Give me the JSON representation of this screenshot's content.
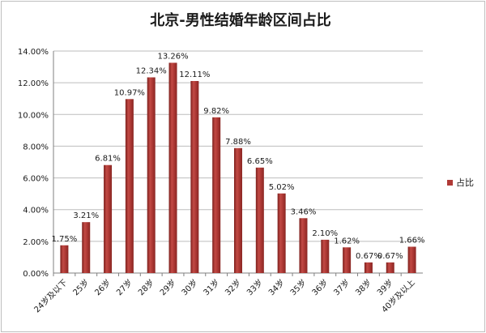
{
  "chart_data": {
    "type": "bar",
    "title": "北京-男性结婚年龄区间占比",
    "categories": [
      "24岁及以下",
      "25岁",
      "26岁",
      "27岁",
      "28岁",
      "29岁",
      "30岁",
      "31岁",
      "32岁",
      "33岁",
      "34岁",
      "35岁",
      "36岁",
      "37岁",
      "38岁",
      "39岁",
      "40岁及以上"
    ],
    "series": [
      {
        "name": "占比",
        "values": [
          1.75,
          3.21,
          6.81,
          10.97,
          12.34,
          13.26,
          12.11,
          9.82,
          7.88,
          6.65,
          5.02,
          3.46,
          2.1,
          1.62,
          0.67,
          0.67,
          1.66
        ],
        "labels": [
          "1.75%",
          "3.21%",
          "6.81%",
          "10.97%",
          "12.34%",
          "13.26%",
          "12.11%",
          "9.82%",
          "7.88%",
          "6.65%",
          "5.02%",
          "3.46%",
          "2.10%",
          "1.62%",
          "0.67%",
          "0.67%",
          "1.66%"
        ]
      }
    ],
    "y_ticks": [
      "0.00%",
      "2.00%",
      "4.00%",
      "6.00%",
      "8.00%",
      "10.00%",
      "12.00%",
      "14.00%"
    ],
    "ylim": [
      0,
      14
    ],
    "grid": true,
    "legend_position": "right",
    "bar_color": "#b03a36"
  }
}
